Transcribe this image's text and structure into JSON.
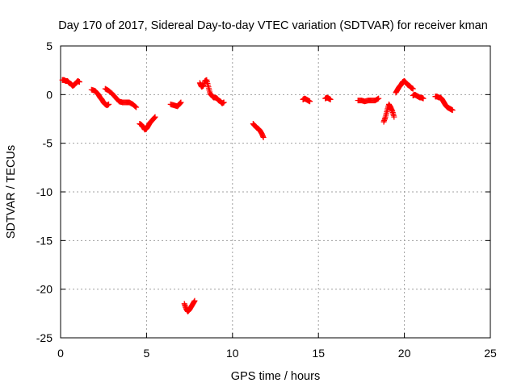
{
  "chart_data": {
    "type": "scatter",
    "title": "Day 170 of 2017, Sidereal Day-to-day VTEC variation (SDTVAR) for receiver kman",
    "xlabel": "GPS time / hours",
    "ylabel": "SDTVAR / TECUs",
    "xlim": [
      0,
      25
    ],
    "ylim": [
      -25,
      5
    ],
    "xticks": [
      0,
      5,
      10,
      15,
      20,
      25
    ],
    "yticks": [
      -25,
      -20,
      -15,
      -10,
      -5,
      0,
      5
    ],
    "grid": true,
    "marker": "+",
    "series": [
      {
        "name": "SDTVAR",
        "color": "#ff0000",
        "segments": [
          [
            [
              0.1,
              1.5
            ],
            [
              0.2,
              1.5
            ],
            [
              0.3,
              1.4
            ],
            [
              0.4,
              1.4
            ],
            [
              0.5,
              1.2
            ],
            [
              0.6,
              1.1
            ],
            [
              0.7,
              0.9
            ],
            [
              0.8,
              1.0
            ],
            [
              0.9,
              1.2
            ],
            [
              1.0,
              1.4
            ],
            [
              1.1,
              1.3
            ]
          ],
          [
            [
              1.8,
              0.5
            ],
            [
              2.0,
              0.4
            ],
            [
              2.1,
              0.2
            ],
            [
              2.2,
              0.0
            ],
            [
              2.3,
              -0.3
            ],
            [
              2.4,
              -0.5
            ],
            [
              2.5,
              -0.8
            ],
            [
              2.6,
              -1.0
            ],
            [
              2.7,
              -1.1
            ],
            [
              2.8,
              -1.0
            ]
          ],
          [
            [
              2.6,
              0.6
            ],
            [
              2.8,
              0.4
            ],
            [
              3.0,
              0.1
            ],
            [
              3.2,
              -0.3
            ],
            [
              3.4,
              -0.7
            ],
            [
              3.6,
              -0.8
            ],
            [
              3.8,
              -0.8
            ],
            [
              4.0,
              -0.8
            ],
            [
              4.2,
              -1.0
            ],
            [
              4.4,
              -1.3
            ]
          ],
          [
            [
              4.6,
              -3.0
            ],
            [
              4.7,
              -3.1
            ],
            [
              4.8,
              -3.3
            ],
            [
              4.9,
              -3.6
            ],
            [
              5.0,
              -3.5
            ],
            [
              5.1,
              -3.2
            ],
            [
              5.2,
              -2.9
            ],
            [
              5.3,
              -2.7
            ],
            [
              5.4,
              -2.5
            ],
            [
              5.5,
              -2.3
            ]
          ],
          [
            [
              6.4,
              -1.0
            ],
            [
              6.6,
              -1.1
            ],
            [
              6.8,
              -1.2
            ],
            [
              6.9,
              -1.0
            ],
            [
              7.0,
              -0.8
            ]
          ],
          [
            [
              7.2,
              -21.5
            ],
            [
              7.3,
              -22.0
            ],
            [
              7.4,
              -22.3
            ],
            [
              7.5,
              -22.1
            ],
            [
              7.6,
              -21.8
            ],
            [
              7.7,
              -21.5
            ],
            [
              7.8,
              -21.2
            ]
          ],
          [
            [
              8.1,
              1.2
            ],
            [
              8.2,
              0.8
            ],
            [
              8.3,
              0.9
            ],
            [
              8.4,
              1.4
            ],
            [
              8.5,
              1.5
            ],
            [
              8.6,
              0.8
            ],
            [
              8.7,
              0.1
            ],
            [
              8.8,
              -0.1
            ],
            [
              8.9,
              -0.3
            ],
            [
              9.0,
              -0.3
            ],
            [
              9.1,
              -0.4
            ],
            [
              9.2,
              -0.6
            ],
            [
              9.3,
              -0.7
            ],
            [
              9.4,
              -0.9
            ],
            [
              9.5,
              -0.8
            ]
          ],
          [
            [
              11.2,
              -3.0
            ],
            [
              11.3,
              -3.2
            ],
            [
              11.4,
              -3.4
            ],
            [
              11.5,
              -3.5
            ],
            [
              11.6,
              -3.7
            ],
            [
              11.7,
              -4.0
            ],
            [
              11.8,
              -4.4
            ]
          ],
          [
            [
              14.1,
              -0.5
            ],
            [
              14.2,
              -0.4
            ],
            [
              14.3,
              -0.5
            ],
            [
              14.4,
              -0.6
            ],
            [
              14.5,
              -0.7
            ]
          ],
          [
            [
              15.4,
              -0.4
            ],
            [
              15.5,
              -0.3
            ],
            [
              15.6,
              -0.4
            ],
            [
              15.7,
              -0.5
            ]
          ],
          [
            [
              17.3,
              -0.6
            ],
            [
              17.5,
              -0.6
            ],
            [
              17.7,
              -0.7
            ],
            [
              17.9,
              -0.6
            ],
            [
              18.1,
              -0.6
            ],
            [
              18.3,
              -0.6
            ],
            [
              18.5,
              -0.4
            ]
          ],
          [
            [
              18.8,
              -2.8
            ],
            [
              18.9,
              -2.3
            ],
            [
              19.0,
              -1.6
            ],
            [
              19.1,
              -1.0
            ],
            [
              19.2,
              -1.3
            ],
            [
              19.3,
              -1.7
            ],
            [
              19.4,
              -2.3
            ]
          ],
          [
            [
              19.5,
              0.2
            ],
            [
              19.6,
              0.5
            ],
            [
              19.7,
              0.8
            ],
            [
              19.8,
              1.0
            ],
            [
              19.9,
              1.3
            ],
            [
              20.0,
              1.4
            ],
            [
              20.1,
              1.2
            ],
            [
              20.2,
              1.0
            ],
            [
              20.3,
              0.9
            ],
            [
              20.4,
              0.7
            ],
            [
              20.5,
              0.6
            ]
          ],
          [
            [
              20.5,
              -0.1
            ],
            [
              20.6,
              0.0
            ],
            [
              20.7,
              -0.1
            ],
            [
              20.8,
              -0.2
            ],
            [
              20.9,
              -0.3
            ],
            [
              21.0,
              -0.3
            ],
            [
              21.1,
              -0.4
            ]
          ],
          [
            [
              21.8,
              -0.2
            ],
            [
              21.9,
              -0.2
            ],
            [
              22.0,
              -0.3
            ],
            [
              22.1,
              -0.3
            ],
            [
              22.2,
              -0.5
            ],
            [
              22.3,
              -0.8
            ],
            [
              22.4,
              -1.1
            ],
            [
              22.5,
              -1.3
            ],
            [
              22.6,
              -1.4
            ],
            [
              22.7,
              -1.5
            ],
            [
              22.8,
              -1.6
            ]
          ]
        ]
      }
    ]
  }
}
